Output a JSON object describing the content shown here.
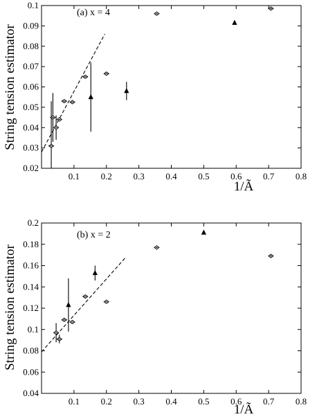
{
  "chart_data": [
    {
      "type": "scatter",
      "panel_label": "(a) x = 4",
      "xlabel": "1/Ã",
      "ylabel": "String tension estimator",
      "xlim": [
        0,
        0.8
      ],
      "ylim": [
        0.02,
        0.1
      ],
      "xticks": [
        "0.1",
        "0.2",
        "0.3",
        "0.4",
        "0.5",
        "0.6",
        "0.7",
        "0.8"
      ],
      "yticks": [
        "0.02",
        "0.03",
        "0.04",
        "0.05",
        "0.06",
        "0.07",
        "0.08",
        "0.09",
        "0.1"
      ],
      "series": [
        {
          "marker": "diamond",
          "points": [
            {
              "x": 0.03,
              "y": 0.031,
              "err": 0.022
            },
            {
              "x": 0.035,
              "y": 0.045,
              "err": 0.012
            },
            {
              "x": 0.045,
              "y": 0.04,
              "err": 0.006
            },
            {
              "x": 0.055,
              "y": 0.044,
              "err": 0.0
            },
            {
              "x": 0.07,
              "y": 0.053,
              "err": 0.0
            },
            {
              "x": 0.095,
              "y": 0.0525,
              "err": 0.0
            },
            {
              "x": 0.135,
              "y": 0.065,
              "err": 0.0
            },
            {
              "x": 0.2,
              "y": 0.0665,
              "err": 0.0
            },
            {
              "x": 0.355,
              "y": 0.096,
              "err": 0.0
            },
            {
              "x": 0.707,
              "y": 0.0985,
              "err": 0.0
            }
          ]
        },
        {
          "marker": "triangle",
          "points": [
            {
              "x": 0.152,
              "y": 0.055,
              "err": 0.017
            },
            {
              "x": 0.262,
              "y": 0.058,
              "err": 0.0045
            },
            {
              "x": 0.595,
              "y": 0.0915,
              "err": 0.0
            }
          ]
        }
      ],
      "fit_line": {
        "x": [
          0.0,
          0.195
        ],
        "y": [
          0.028,
          0.086
        ]
      }
    },
    {
      "type": "scatter",
      "panel_label": "(b) x = 2",
      "xlabel": "1/Ã",
      "ylabel": "String tension estimator",
      "xlim": [
        0,
        0.8
      ],
      "ylim": [
        0.04,
        0.2
      ],
      "xticks": [
        "0.1",
        "0.2",
        "0.3",
        "0.4",
        "0.5",
        "0.6",
        "0.7",
        "0.8"
      ],
      "yticks": [
        "0.04",
        "0.06",
        "0.08",
        "0.1",
        "0.12",
        "0.14",
        "0.16",
        "0.18",
        "0.2"
      ],
      "series": [
        {
          "marker": "diamond",
          "points": [
            {
              "x": 0.045,
              "y": 0.097,
              "err": 0.009
            },
            {
              "x": 0.055,
              "y": 0.091,
              "err": 0.004
            },
            {
              "x": 0.07,
              "y": 0.109,
              "err": 0.0
            },
            {
              "x": 0.095,
              "y": 0.107,
              "err": 0.0
            },
            {
              "x": 0.135,
              "y": 0.131,
              "err": 0.0
            },
            {
              "x": 0.2,
              "y": 0.126,
              "err": 0.0
            },
            {
              "x": 0.355,
              "y": 0.177,
              "err": 0.0
            },
            {
              "x": 0.707,
              "y": 0.169,
              "err": 0.0
            }
          ]
        },
        {
          "marker": "triangle",
          "points": [
            {
              "x": 0.083,
              "y": 0.123,
              "err": 0.025
            },
            {
              "x": 0.165,
              "y": 0.153,
              "err": 0.007
            },
            {
              "x": 0.5,
              "y": 0.191,
              "err": 0.0
            }
          ]
        }
      ],
      "fit_line": {
        "x": [
          0.0,
          0.26
        ],
        "y": [
          0.079,
          0.168
        ]
      }
    }
  ]
}
